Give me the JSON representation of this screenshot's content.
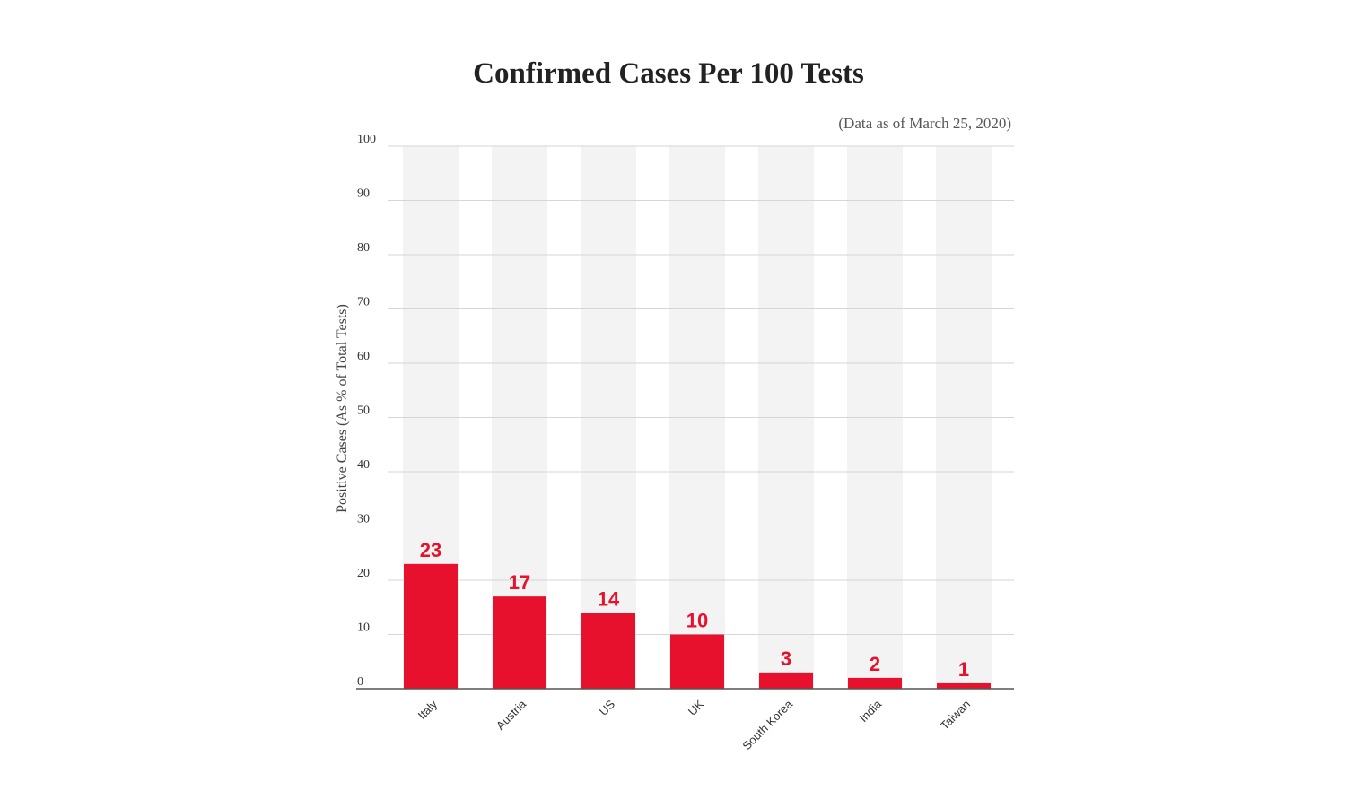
{
  "chart_data": {
    "type": "bar",
    "title": "Confirmed Cases Per 100 Tests",
    "subtitle": "(Data as of March 25, 2020)",
    "xlabel": "",
    "ylabel": "Positive Cases (As % of Total Tests)",
    "categories": [
      "Italy",
      "Austria",
      "US",
      "UK",
      "South Korea",
      "India",
      "Taiwan"
    ],
    "values": [
      23,
      17,
      14,
      10,
      3,
      2,
      1
    ],
    "ylim": [
      0,
      100
    ],
    "yticks": [
      0,
      10,
      20,
      30,
      40,
      50,
      60,
      70,
      80,
      90,
      100
    ],
    "grid": true,
    "colors": {
      "bar": "#e8112d",
      "label": "#e8112d",
      "band": "#f3f3f3",
      "grid": "#d6d6d6",
      "axis": "#555555",
      "text": "#333333"
    }
  }
}
